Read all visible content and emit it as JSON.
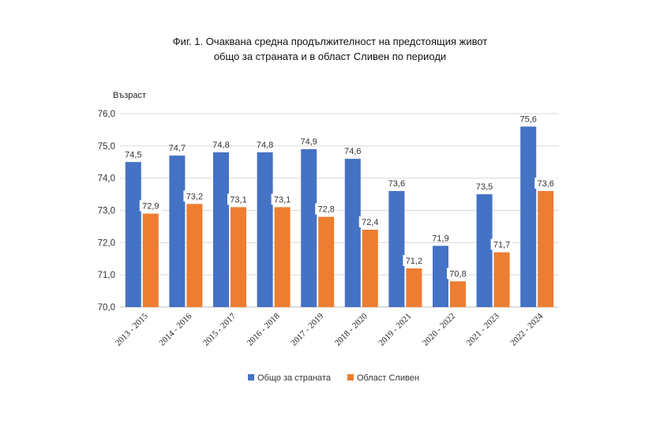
{
  "chart_data": {
    "type": "bar",
    "title": "Фиг. 1. Очаквана средна продължителност на предстоящия живот",
    "subtitle": "общо за страната и в област Сливен по периоди",
    "ylabel": "Възраст",
    "xlabel": "",
    "ylim": [
      70,
      76
    ],
    "yticks": [
      "70,0",
      "71,0",
      "72,0",
      "73,0",
      "74,0",
      "75,0",
      "76,0"
    ],
    "grid": true,
    "legend_position": "bottom",
    "categories": [
      "2013 - 2015",
      "2014 - 2016",
      "2015 - 2017",
      "2016 - 2018",
      "2017 - 2019",
      "2018 - 2020",
      "2019 - 2021",
      "2020 - 2022",
      "2021 - 2023",
      "2022 - 2024"
    ],
    "series": [
      {
        "name": "Общо за страната",
        "color": "#4472C4",
        "values": [
          74.5,
          74.7,
          74.8,
          74.8,
          74.9,
          74.6,
          73.6,
          71.9,
          73.5,
          75.6
        ],
        "labels": [
          "74,5",
          "74,7",
          "74,8",
          "74,8",
          "74,9",
          "74,6",
          "73,6",
          "71,9",
          "73,5",
          "75,6"
        ]
      },
      {
        "name": "Област Сливен",
        "color": "#ED7D31",
        "values": [
          72.9,
          73.2,
          73.1,
          73.1,
          72.8,
          72.4,
          71.2,
          70.8,
          71.7,
          73.6
        ],
        "labels": [
          "72,9",
          "73,2",
          "73,1",
          "73,1",
          "72,8",
          "72,4",
          "71,2",
          "70,8",
          "71,7",
          "73,6"
        ]
      }
    ]
  }
}
